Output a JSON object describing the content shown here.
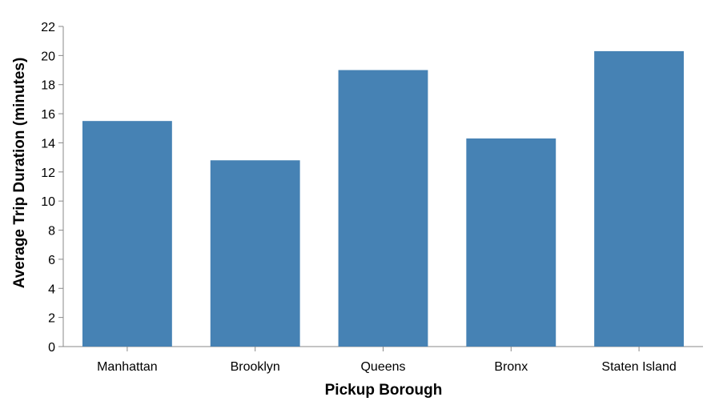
{
  "chart_data": {
    "type": "bar",
    "title": "",
    "xlabel": "Pickup Borough",
    "ylabel": "Average Trip Duration (minutes)",
    "categories": [
      "Manhattan",
      "Brooklyn",
      "Queens",
      "Bronx",
      "Staten Island"
    ],
    "values": [
      15.5,
      12.8,
      19.0,
      14.3,
      20.3
    ],
    "ylim": [
      0,
      22
    ],
    "yticks": [
      0,
      2,
      4,
      6,
      8,
      10,
      12,
      14,
      16,
      18,
      20,
      22
    ],
    "grid": false,
    "legend": "none",
    "bar_color": "#4682b4",
    "axis_color": "#888888"
  }
}
